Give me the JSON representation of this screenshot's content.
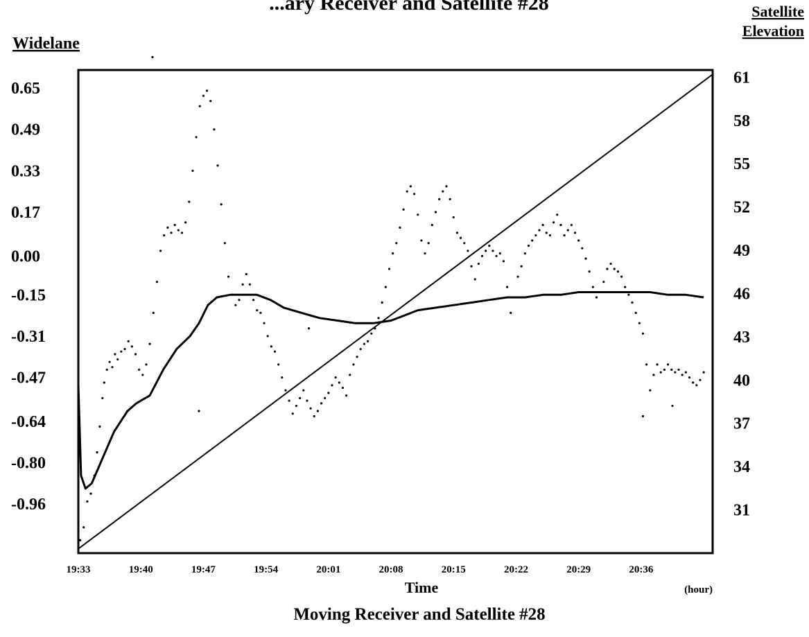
{
  "chart_data": {
    "type": "scatter",
    "title": "Moving Receiver and Satellite #28",
    "top_title_fragment": "...ary Receiver and Satellite #28",
    "xlabel": "Time",
    "x_unit": "(hour)",
    "ylabel_left": "Widelane",
    "ylabel_right_line1": "Satellite",
    "ylabel_right_line2": "Elevation",
    "x_ticks": [
      "19:33",
      "19:40",
      "19:47",
      "19:54",
      "20:01",
      "20:08",
      "20:15",
      "20:22",
      "20:29",
      "20:36"
    ],
    "y_left_ticks": [
      "0.65",
      "0.49",
      "0.33",
      "0.17",
      "0.00",
      "-0.15",
      "-0.31",
      "-0.47",
      "-0.64",
      "-0.80",
      "-0.96"
    ],
    "y_right_ticks": [
      "61",
      "58",
      "55",
      "52",
      "49",
      "46",
      "43",
      "40",
      "37",
      "34",
      "31"
    ],
    "x_range_minutes_after_1933": [
      0,
      71
    ],
    "y_left_range": [
      -1.15,
      0.72
    ],
    "y_right_range": [
      28,
      61.5
    ],
    "series": [
      {
        "kind": "dots",
        "axis": "left",
        "points": [
          [
            0.2,
            -1.1
          ],
          [
            0.6,
            -1.05
          ],
          [
            1.0,
            -0.95
          ],
          [
            1.4,
            -0.92
          ],
          [
            1.8,
            -0.85
          ],
          [
            2.1,
            -0.76
          ],
          [
            2.4,
            -0.66
          ],
          [
            2.7,
            -0.55
          ],
          [
            2.9,
            -0.49
          ],
          [
            3.2,
            -0.44
          ],
          [
            3.5,
            -0.41
          ],
          [
            3.8,
            -0.43
          ],
          [
            4.1,
            -0.38
          ],
          [
            4.4,
            -0.4
          ],
          [
            4.8,
            -0.37
          ],
          [
            5.2,
            -0.36
          ],
          [
            5.6,
            -0.33
          ],
          [
            6.0,
            -0.35
          ],
          [
            6.4,
            -0.38
          ],
          [
            6.8,
            -0.44
          ],
          [
            7.2,
            -0.46
          ],
          [
            7.6,
            -0.42
          ],
          [
            8.0,
            -0.34
          ],
          [
            8.4,
            -0.22
          ],
          [
            8.8,
            -0.1
          ],
          [
            9.2,
            0.02
          ],
          [
            9.6,
            0.08
          ],
          [
            10.0,
            0.11
          ],
          [
            10.4,
            0.09
          ],
          [
            10.8,
            0.12
          ],
          [
            11.2,
            0.1
          ],
          [
            11.6,
            0.09
          ],
          [
            12.0,
            0.13
          ],
          [
            12.4,
            0.21
          ],
          [
            12.8,
            0.33
          ],
          [
            13.2,
            0.46
          ],
          [
            13.6,
            0.58
          ],
          [
            14.0,
            0.62
          ],
          [
            14.4,
            0.64
          ],
          [
            14.8,
            0.6
          ],
          [
            15.2,
            0.49
          ],
          [
            15.6,
            0.35
          ],
          [
            16.0,
            0.2
          ],
          [
            16.4,
            0.05
          ],
          [
            16.8,
            -0.08
          ],
          [
            17.2,
            -0.15
          ],
          [
            17.6,
            -0.19
          ],
          [
            18.0,
            -0.17
          ],
          [
            18.4,
            -0.11
          ],
          [
            18.8,
            -0.07
          ],
          [
            19.2,
            -0.11
          ],
          [
            19.6,
            -0.17
          ],
          [
            20.0,
            -0.21
          ],
          [
            20.4,
            -0.22
          ],
          [
            20.8,
            -0.26
          ],
          [
            21.2,
            -0.31
          ],
          [
            21.6,
            -0.35
          ],
          [
            22.0,
            -0.37
          ],
          [
            22.4,
            -0.42
          ],
          [
            22.8,
            -0.47
          ],
          [
            23.2,
            -0.52
          ],
          [
            23.6,
            -0.56
          ],
          [
            24.0,
            -0.61
          ],
          [
            24.4,
            -0.58
          ],
          [
            24.8,
            -0.55
          ],
          [
            25.2,
            -0.52
          ],
          [
            25.6,
            -0.56
          ],
          [
            26.0,
            -0.59
          ],
          [
            26.4,
            -0.62
          ],
          [
            26.8,
            -0.6
          ],
          [
            27.2,
            -0.57
          ],
          [
            27.6,
            -0.55
          ],
          [
            28.0,
            -0.53
          ],
          [
            28.4,
            -0.5
          ],
          [
            28.8,
            -0.47
          ],
          [
            29.2,
            -0.49
          ],
          [
            29.6,
            -0.51
          ],
          [
            30.0,
            -0.54
          ],
          [
            30.4,
            -0.46
          ],
          [
            30.8,
            -0.42
          ],
          [
            31.2,
            -0.39
          ],
          [
            31.6,
            -0.36
          ],
          [
            32.0,
            -0.34
          ],
          [
            32.4,
            -0.33
          ],
          [
            32.8,
            -0.3
          ],
          [
            33.2,
            -0.28
          ],
          [
            33.6,
            -0.24
          ],
          [
            34.0,
            -0.18
          ],
          [
            34.4,
            -0.12
          ],
          [
            34.8,
            -0.05
          ],
          [
            35.2,
            0.01
          ],
          [
            35.6,
            0.05
          ],
          [
            36.0,
            0.11
          ],
          [
            36.4,
            0.18
          ],
          [
            36.8,
            0.25
          ],
          [
            37.2,
            0.27
          ],
          [
            37.6,
            0.24
          ],
          [
            38.0,
            0.16
          ],
          [
            38.4,
            0.06
          ],
          [
            38.8,
            0.01
          ],
          [
            39.2,
            0.05
          ],
          [
            39.6,
            0.12
          ],
          [
            40.0,
            0.17
          ],
          [
            40.4,
            0.22
          ],
          [
            40.8,
            0.25
          ],
          [
            41.2,
            0.27
          ],
          [
            41.6,
            0.22
          ],
          [
            42.0,
            0.15
          ],
          [
            42.4,
            0.09
          ],
          [
            42.8,
            0.07
          ],
          [
            43.2,
            0.05
          ],
          [
            43.6,
            0.02
          ],
          [
            44.0,
            -0.04
          ],
          [
            44.4,
            -0.09
          ],
          [
            44.8,
            -0.03
          ],
          [
            45.2,
            0.0
          ],
          [
            45.6,
            0.02
          ],
          [
            46.0,
            0.04
          ],
          [
            46.4,
            0.02
          ],
          [
            46.8,
            0.0
          ],
          [
            47.2,
            0.01
          ],
          [
            47.6,
            -0.02
          ],
          [
            48.0,
            -0.12
          ],
          [
            48.4,
            -0.22
          ],
          [
            48.8,
            -0.16
          ],
          [
            49.2,
            -0.08
          ],
          [
            49.6,
            -0.04
          ],
          [
            50.0,
            0.01
          ],
          [
            50.4,
            0.04
          ],
          [
            50.8,
            0.06
          ],
          [
            51.2,
            0.08
          ],
          [
            51.6,
            0.1
          ],
          [
            52.0,
            0.12
          ],
          [
            52.4,
            0.09
          ],
          [
            52.8,
            0.08
          ],
          [
            53.2,
            0.13
          ],
          [
            53.6,
            0.16
          ],
          [
            54.0,
            0.12
          ],
          [
            54.4,
            0.08
          ],
          [
            54.8,
            0.1
          ],
          [
            55.2,
            0.12
          ],
          [
            55.6,
            0.09
          ],
          [
            56.0,
            0.06
          ],
          [
            56.4,
            0.03
          ],
          [
            56.8,
            -0.01
          ],
          [
            57.2,
            -0.06
          ],
          [
            57.6,
            -0.12
          ],
          [
            58.0,
            -0.16
          ],
          [
            58.4,
            -0.14
          ],
          [
            58.8,
            -0.1
          ],
          [
            59.2,
            -0.05
          ],
          [
            59.6,
            -0.03
          ],
          [
            60.0,
            -0.05
          ],
          [
            60.4,
            -0.06
          ],
          [
            60.8,
            -0.08
          ],
          [
            61.2,
            -0.12
          ],
          [
            61.6,
            -0.15
          ],
          [
            62.0,
            -0.18
          ],
          [
            62.4,
            -0.22
          ],
          [
            62.8,
            -0.26
          ],
          [
            63.2,
            -0.3
          ],
          [
            63.6,
            -0.42
          ],
          [
            64.0,
            -0.52
          ],
          [
            64.4,
            -0.46
          ],
          [
            64.8,
            -0.42
          ],
          [
            65.2,
            -0.45
          ],
          [
            65.6,
            -0.44
          ],
          [
            66.0,
            -0.42
          ],
          [
            66.4,
            -0.44
          ],
          [
            66.8,
            -0.45
          ],
          [
            67.2,
            -0.44
          ],
          [
            67.6,
            -0.46
          ],
          [
            68.0,
            -0.45
          ],
          [
            68.4,
            -0.47
          ],
          [
            68.8,
            -0.49
          ],
          [
            69.2,
            -0.5
          ],
          [
            69.6,
            -0.48
          ],
          [
            70.0,
            -0.45
          ],
          [
            8.3,
            0.77
          ],
          [
            13.5,
            -0.6
          ],
          [
            25.8,
            -0.28
          ],
          [
            66.5,
            -0.58
          ],
          [
            63.2,
            -0.62
          ]
        ]
      },
      {
        "kind": "widelane-average",
        "axis": "left",
        "points": [
          [
            0,
            -0.5
          ],
          [
            0.3,
            -0.85
          ],
          [
            0.8,
            -0.9
          ],
          [
            1.5,
            -0.88
          ],
          [
            2.5,
            -0.8
          ],
          [
            4.0,
            -0.68
          ],
          [
            5.5,
            -0.6
          ],
          [
            6.5,
            -0.57
          ],
          [
            8.0,
            -0.54
          ],
          [
            9.5,
            -0.44
          ],
          [
            11.0,
            -0.36
          ],
          [
            12.5,
            -0.31
          ],
          [
            13.5,
            -0.26
          ],
          [
            14.5,
            -0.19
          ],
          [
            15.5,
            -0.16
          ],
          [
            17.0,
            -0.15
          ],
          [
            18.5,
            -0.15
          ],
          [
            20.0,
            -0.15
          ],
          [
            21.5,
            -0.17
          ],
          [
            23.0,
            -0.2
          ],
          [
            25.0,
            -0.22
          ],
          [
            27.0,
            -0.24
          ],
          [
            29.0,
            -0.25
          ],
          [
            31.0,
            -0.26
          ],
          [
            33.0,
            -0.26
          ],
          [
            35.0,
            -0.25
          ],
          [
            36.5,
            -0.23
          ],
          [
            38.0,
            -0.21
          ],
          [
            40.0,
            -0.2
          ],
          [
            42.0,
            -0.19
          ],
          [
            44.0,
            -0.18
          ],
          [
            46.0,
            -0.17
          ],
          [
            48.0,
            -0.16
          ],
          [
            50.0,
            -0.16
          ],
          [
            52.0,
            -0.15
          ],
          [
            54.0,
            -0.15
          ],
          [
            56.0,
            -0.14
          ],
          [
            58.0,
            -0.14
          ],
          [
            60.0,
            -0.14
          ],
          [
            62.0,
            -0.14
          ],
          [
            64.0,
            -0.14
          ],
          [
            66.0,
            -0.15
          ],
          [
            68.0,
            -0.15
          ],
          [
            70.0,
            -0.16
          ]
        ]
      },
      {
        "kind": "elevation-line",
        "axis": "right",
        "points": [
          [
            0,
            28.3
          ],
          [
            71,
            61.2
          ]
        ]
      }
    ],
    "grid": false
  }
}
